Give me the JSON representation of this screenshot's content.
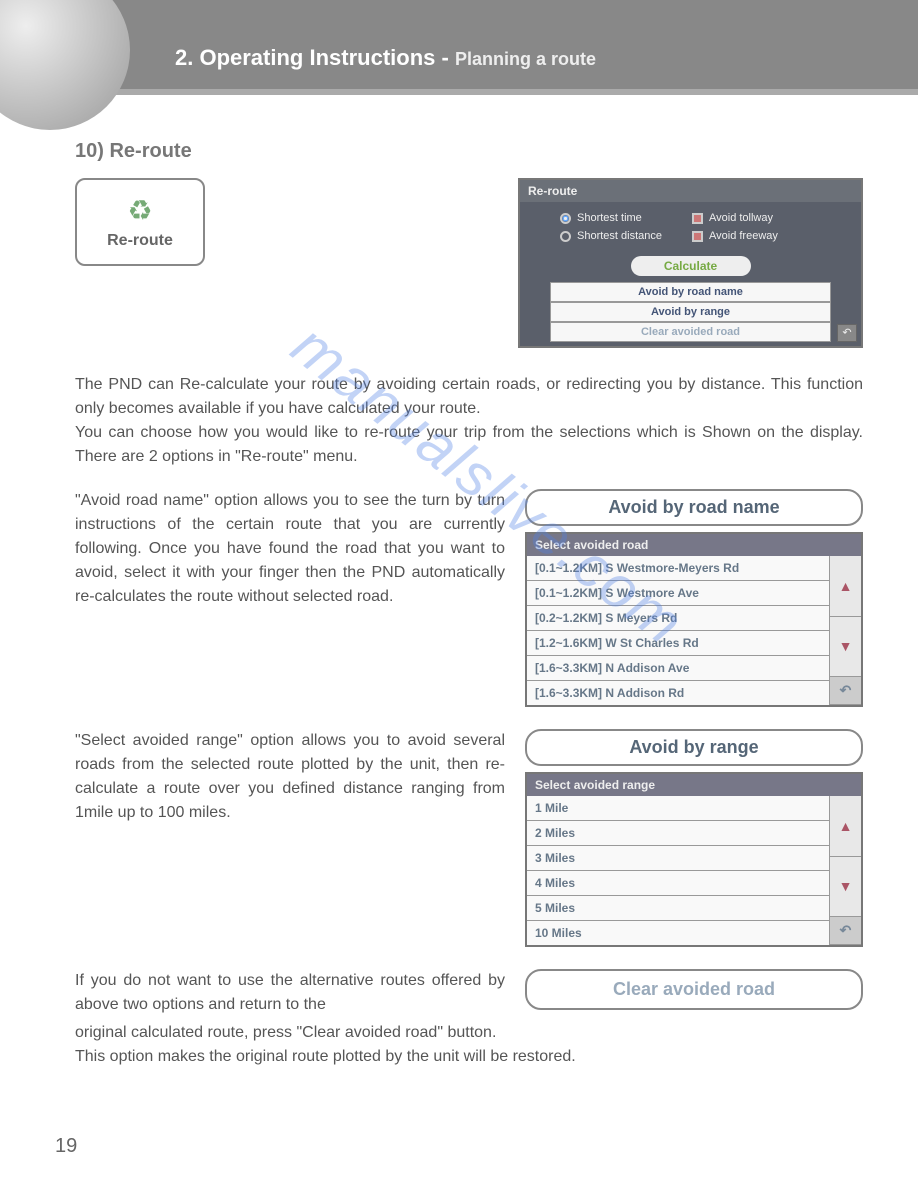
{
  "header": {
    "chapter": "2. Operating Instructions",
    "sub": "Planning a route"
  },
  "section": {
    "number_title": "10) Re-route"
  },
  "reroute_button": {
    "label": "Re-route"
  },
  "reroute_panel": {
    "title": "Re-route",
    "opt_shortest_time": "Shortest time",
    "opt_shortest_dist": "Shortest distance",
    "opt_avoid_tollway": "Avoid tollway",
    "opt_avoid_freeway": "Avoid freeway",
    "calculate": "Calculate",
    "btn_road_name": "Avoid by road name",
    "btn_range": "Avoid by range",
    "btn_clear": "Clear avoided road"
  },
  "text": {
    "p1": "The PND can Re-calculate your route by avoiding certain roads, or redirecting you by distance. This function only becomes available if you have calculated your route.",
    "p2": "You can choose how you would like to re-route your trip from the selections which is Shown on the display. There are 2 options in \"Re-route\" menu.",
    "p3": "\"Avoid road name\" option allows you to see the turn by turn instructions of the certain route that you are currently following. Once you have found the road that you want to avoid, select it with your finger then the PND automatically re-calculates the route without selected road.",
    "p4": "\"Select avoided range\" option allows you to avoid several roads from the selected route plotted by the unit, then re-calculate a route over you defined distance ranging from 1mile up to 100 miles.",
    "p5a": "If you do not want to use the alternative routes offered by above two options and return to the",
    "p5b": "original calculated route, press \"Clear avoided road\" button.",
    "p6": "This option makes the original route plotted by the unit will be restored."
  },
  "avoid_name": {
    "header": "Avoid by road name",
    "list_title": "Select avoided road",
    "rows": [
      "[0.1~1.2KM] S Westmore-Meyers Rd",
      "[0.1~1.2KM] S Westmore Ave",
      "[0.2~1.2KM] S Meyers Rd",
      "[1.2~1.6KM] W St Charles Rd",
      "[1.6~3.3KM] N Addison Ave",
      "[1.6~3.3KM] N Addison Rd"
    ]
  },
  "avoid_range": {
    "header": "Avoid by range",
    "list_title": "Select avoided range",
    "rows": [
      "1 Mile",
      "2 Miles",
      "3 Miles",
      "4 Miles",
      "5 Miles",
      "10 Miles"
    ]
  },
  "clear": {
    "label": "Clear avoided road"
  },
  "page": "19",
  "watermark": "manualslive.com"
}
